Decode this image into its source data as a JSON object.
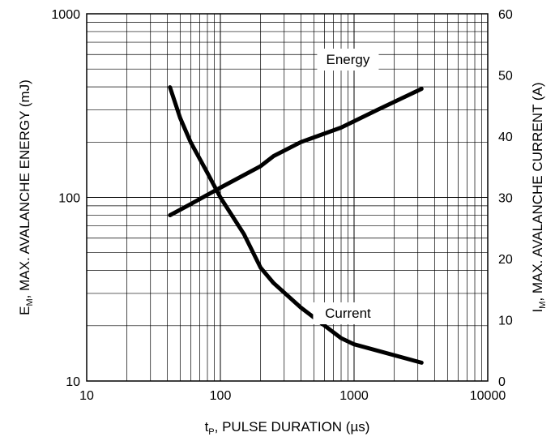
{
  "chart_data": {
    "type": "line",
    "x_scale": "log",
    "y_left_scale": "log",
    "y_right_scale": "linear",
    "xlim": [
      10,
      10000
    ],
    "ylim_left": [
      10,
      1000
    ],
    "ylim_right": [
      0,
      60
    ],
    "grid": true,
    "xlabel_main": "t",
    "xlabel_sub": "P",
    "xlabel_rest": ", PULSE DURATION (µs)",
    "ylabel_left_main": "E",
    "ylabel_left_sub": "M",
    "ylabel_left_rest": ", MAX. AVALANCHE ENERGY (mJ)",
    "ylabel_right_main": "I",
    "ylabel_right_sub": "M",
    "ylabel_right_rest": ", MAX. AVALANCHE CURRENT (A)",
    "x_ticks": [
      "10",
      "100",
      "1000",
      "10000"
    ],
    "y_left_ticks": [
      "10",
      "100",
      "1000"
    ],
    "y_right_ticks": [
      "0",
      "10",
      "20",
      "30",
      "40",
      "50",
      "60"
    ],
    "series": [
      {
        "name": "Energy",
        "axis": "left",
        "x": [
          42,
          60,
          100,
          200,
          250,
          400,
          800,
          1500,
          3200
        ],
        "y": [
          80,
          92,
          113,
          148,
          168,
          200,
          240,
          300,
          390
        ]
      },
      {
        "name": "Current",
        "axis": "right",
        "x": [
          42,
          50,
          60,
          80,
          100,
          150,
          200,
          250,
          400,
          800,
          1000,
          3200
        ],
        "y": [
          48,
          43,
          39,
          34,
          30,
          24,
          18.5,
          16,
          12,
          7,
          6,
          3
        ]
      }
    ]
  }
}
